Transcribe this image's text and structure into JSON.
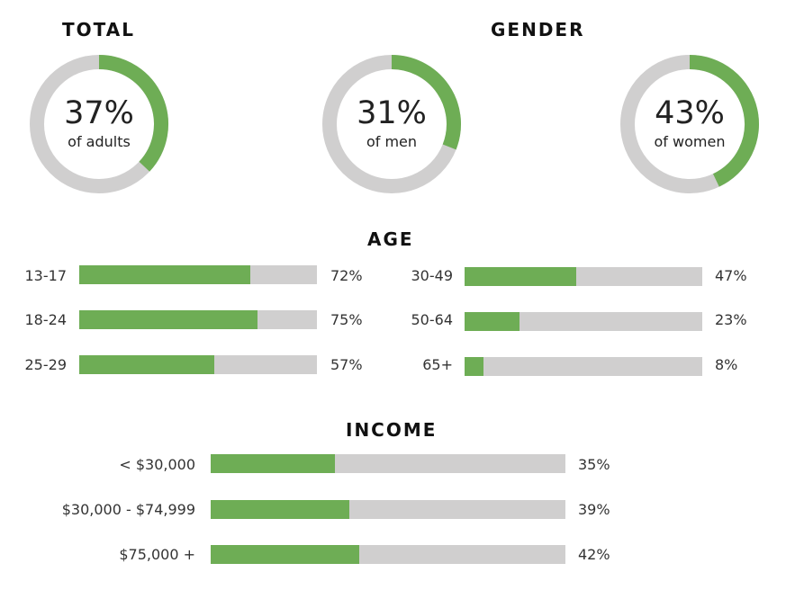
{
  "colors": {
    "accent": "#6ead55",
    "track": "#d0cfcf"
  },
  "headings": {
    "total": "TOTAL",
    "gender": "GENDER",
    "age": "AGE",
    "income": "INCOME"
  },
  "chart_data": [
    {
      "type": "pie",
      "title": "TOTAL",
      "value": 37,
      "value_label": "37%",
      "caption": "of adults"
    },
    {
      "type": "pie",
      "title": "GENDER",
      "slices": [
        {
          "value": 31,
          "value_label": "31%",
          "caption": "of men"
        },
        {
          "value": 43,
          "value_label": "43%",
          "caption": "of women"
        }
      ]
    },
    {
      "type": "bar",
      "title": "AGE",
      "orientation": "horizontal",
      "ylim": [
        0,
        100
      ],
      "categories": [
        "13-17",
        "18-24",
        "25-29",
        "30-49",
        "50-64",
        "65+"
      ],
      "values": [
        72,
        75,
        57,
        47,
        23,
        8
      ],
      "value_labels": [
        "72%",
        "75%",
        "57%",
        "47%",
        "23%",
        "8%"
      ]
    },
    {
      "type": "bar",
      "title": "INCOME",
      "orientation": "horizontal",
      "ylim": [
        0,
        100
      ],
      "categories": [
        "< $30,000",
        "$30,000 - $74,999",
        "$75,000 +"
      ],
      "values": [
        35,
        39,
        42
      ],
      "value_labels": [
        "35%",
        "39%",
        "42%"
      ]
    }
  ]
}
